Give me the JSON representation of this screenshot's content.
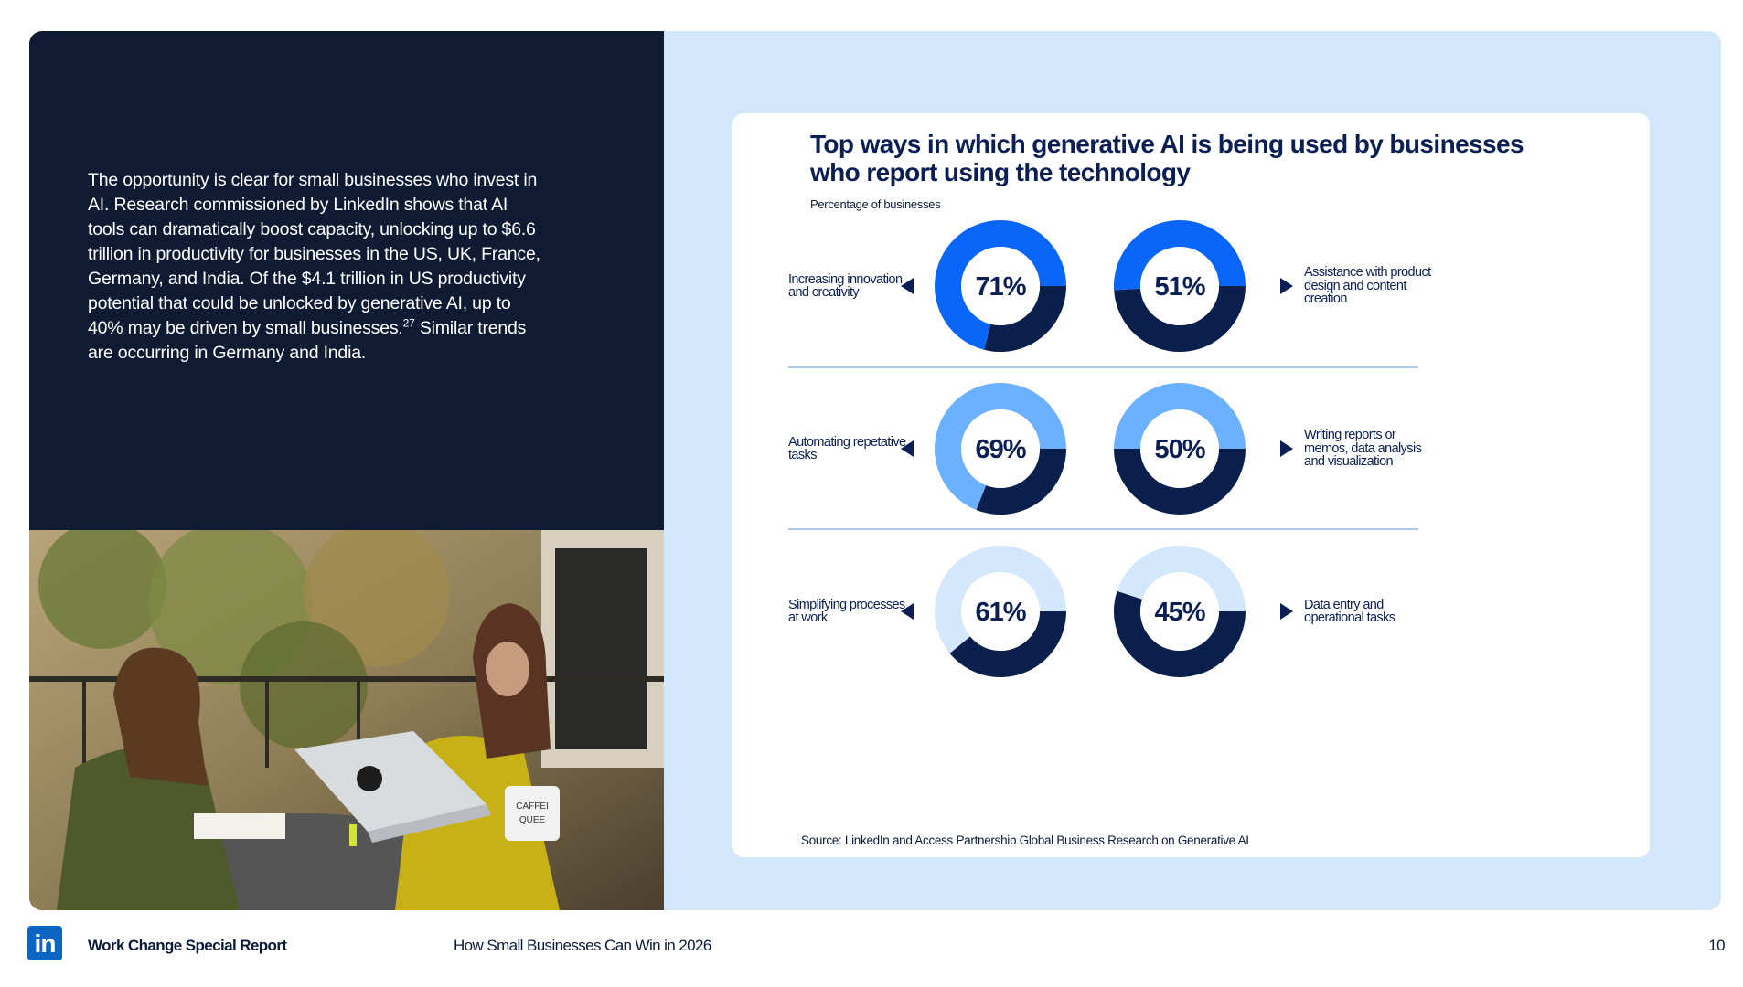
{
  "intro_text": "The opportunity is clear for small businesses who invest in AI. Research commissioned by LinkedIn shows that AI tools can dramatically boost capacity, unlocking up to $6.6 trillion in productivity for businesses in the US, UK, France, Germany, and India. Of the $4.1 trillion in US productivity potential that could be unlocked by generative AI, up to 40% may be driven by small businesses.",
  "intro_footnote": "27",
  "intro_tail": " Similar trends are occurring in Germany and India.",
  "chart": {
    "title": "Top ways in which generative AI is being used by businesses who report using the technology",
    "subtitle": "Percentage of businesses",
    "source": "Source: LinkedIn and Access Partnership Global Business Research on Generative AI"
  },
  "chart_data": {
    "type": "donut",
    "title": "Top ways in which generative AI is being used by businesses who report using the technology",
    "unit": "Percentage of businesses",
    "colors": {
      "row1": "#0a66f8",
      "row2": "#6cb1ff",
      "row3": "#d3e7fd",
      "base": "#0b1f4d"
    },
    "items": [
      {
        "label": "Increasing innovation and creativity",
        "value": 71,
        "value_text": "71%",
        "row": 1,
        "side": "left"
      },
      {
        "label": "Assistance with product design and content creation",
        "value": 51,
        "value_text": "51%",
        "row": 1,
        "side": "right"
      },
      {
        "label": "Automating repetative tasks",
        "value": 69,
        "value_text": "69%",
        "row": 2,
        "side": "left"
      },
      {
        "label": "Writing reports or memos, data analysis and visualization",
        "value": 50,
        "value_text": "50%",
        "row": 2,
        "side": "right"
      },
      {
        "label": "Simplifying processes at work",
        "value": 61,
        "value_text": "61%",
        "row": 3,
        "side": "left"
      },
      {
        "label": "Data entry and operational tasks",
        "value": 45,
        "value_text": "45%",
        "row": 3,
        "side": "right"
      }
    ]
  },
  "photo": {
    "mug_text_1": "CAFFEI",
    "mug_text_2": "QUEE"
  },
  "footer": {
    "logo_text": "in",
    "report_name": "Work Change Special Report",
    "title": "How Small Businesses Can Win in 2026",
    "page": "10"
  }
}
